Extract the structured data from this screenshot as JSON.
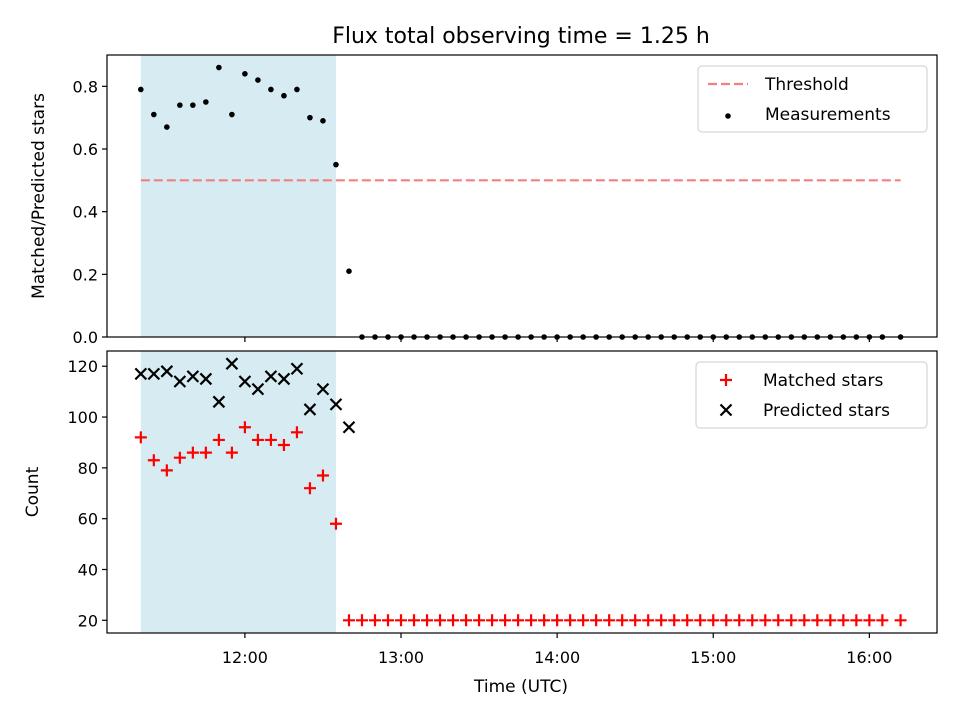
{
  "figure": {
    "title": "Flux total observing time = 1.25 h",
    "xlabel": "Time (UTC)",
    "x_ticks": [
      "12:00",
      "13:00",
      "14:00",
      "15:00",
      "16:00"
    ],
    "x_tick_hours": [
      12,
      13,
      14,
      15,
      16
    ]
  },
  "chart_data": [
    {
      "type": "scatter",
      "ylabel": "Matched/Predicted stars",
      "xlim": [
        "11:07",
        "16:26"
      ],
      "ylim": [
        0,
        0.9
      ],
      "y_ticks": [
        "0.0",
        "0.2",
        "0.4",
        "0.6",
        "0.8"
      ],
      "legend_position": "top-right",
      "shaded_span": {
        "from": "11:20",
        "to": "12:35",
        "color": "#add8e6"
      },
      "threshold": {
        "name": "Threshold",
        "y": 0.5,
        "from": "11:20",
        "to": "16:12",
        "color": "#f08080",
        "style": "dashed"
      },
      "series": [
        {
          "name": "Measurements",
          "marker": "dot",
          "color": "#000000",
          "x": [
            "11:20",
            "11:25",
            "11:30",
            "11:35",
            "11:40",
            "11:45",
            "11:50",
            "11:55",
            "12:00",
            "12:05",
            "12:10",
            "12:15",
            "12:20",
            "12:25",
            "12:30",
            "12:35",
            "12:40",
            "12:45",
            "12:50",
            "12:55",
            "13:00",
            "13:05",
            "13:10",
            "13:15",
            "13:20",
            "13:25",
            "13:30",
            "13:35",
            "13:40",
            "13:45",
            "13:50",
            "13:55",
            "14:00",
            "14:05",
            "14:10",
            "14:15",
            "14:20",
            "14:25",
            "14:30",
            "14:35",
            "14:40",
            "14:45",
            "14:50",
            "14:55",
            "15:00",
            "15:05",
            "15:10",
            "15:15",
            "15:20",
            "15:25",
            "15:30",
            "15:35",
            "15:40",
            "15:45",
            "15:50",
            "15:55",
            "16:00",
            "16:05",
            "16:12"
          ],
          "y": [
            0.79,
            0.71,
            0.67,
            0.74,
            0.74,
            0.75,
            0.86,
            0.71,
            0.84,
            0.82,
            0.79,
            0.77,
            0.79,
            0.7,
            0.69,
            0.55,
            0.21,
            0,
            0,
            0,
            0,
            0,
            0,
            0,
            0,
            0,
            0,
            0,
            0,
            0,
            0,
            0,
            0,
            0,
            0,
            0,
            0,
            0,
            0,
            0,
            0,
            0,
            0,
            0,
            0,
            0,
            0,
            0,
            0,
            0,
            0,
            0,
            0,
            0,
            0,
            0,
            0,
            0,
            0
          ]
        }
      ]
    },
    {
      "type": "scatter",
      "ylabel": "Count",
      "xlim": [
        "11:07",
        "16:26"
      ],
      "ylim": [
        15,
        126
      ],
      "y_ticks": [
        "20",
        "40",
        "60",
        "80",
        "100",
        "120"
      ],
      "legend_position": "top-right",
      "shaded_span": {
        "from": "11:20",
        "to": "12:35",
        "color": "#add8e6"
      },
      "series": [
        {
          "name": "Matched stars",
          "marker": "plus",
          "color": "#ff0000",
          "x": [
            "11:20",
            "11:25",
            "11:30",
            "11:35",
            "11:40",
            "11:45",
            "11:50",
            "11:55",
            "12:00",
            "12:05",
            "12:10",
            "12:15",
            "12:20",
            "12:25",
            "12:30",
            "12:35",
            "12:40",
            "12:45",
            "12:50",
            "12:55",
            "13:00",
            "13:05",
            "13:10",
            "13:15",
            "13:20",
            "13:25",
            "13:30",
            "13:35",
            "13:40",
            "13:45",
            "13:50",
            "13:55",
            "14:00",
            "14:05",
            "14:10",
            "14:15",
            "14:20",
            "14:25",
            "14:30",
            "14:35",
            "14:40",
            "14:45",
            "14:50",
            "14:55",
            "15:00",
            "15:05",
            "15:10",
            "15:15",
            "15:20",
            "15:25",
            "15:30",
            "15:35",
            "15:40",
            "15:45",
            "15:50",
            "15:55",
            "16:00",
            "16:05",
            "16:12"
          ],
          "y": [
            92,
            83,
            79,
            84,
            86,
            86,
            91,
            86,
            96,
            91,
            91,
            89,
            94,
            72,
            77,
            58,
            20,
            20,
            20,
            20,
            20,
            20,
            20,
            20,
            20,
            20,
            20,
            20,
            20,
            20,
            20,
            20,
            20,
            20,
            20,
            20,
            20,
            20,
            20,
            20,
            20,
            20,
            20,
            20,
            20,
            20,
            20,
            20,
            20,
            20,
            20,
            20,
            20,
            20,
            20,
            20,
            20,
            20,
            20
          ]
        },
        {
          "name": "Predicted stars",
          "marker": "x",
          "color": "#000000",
          "x": [
            "11:20",
            "11:25",
            "11:30",
            "11:35",
            "11:40",
            "11:45",
            "11:50",
            "11:55",
            "12:00",
            "12:05",
            "12:10",
            "12:15",
            "12:20",
            "12:25",
            "12:30",
            "12:35",
            "12:40"
          ],
          "y": [
            117,
            117,
            118,
            114,
            116,
            115,
            106,
            121,
            114,
            111,
            116,
            115,
            119,
            103,
            111,
            105,
            96
          ]
        }
      ]
    }
  ]
}
